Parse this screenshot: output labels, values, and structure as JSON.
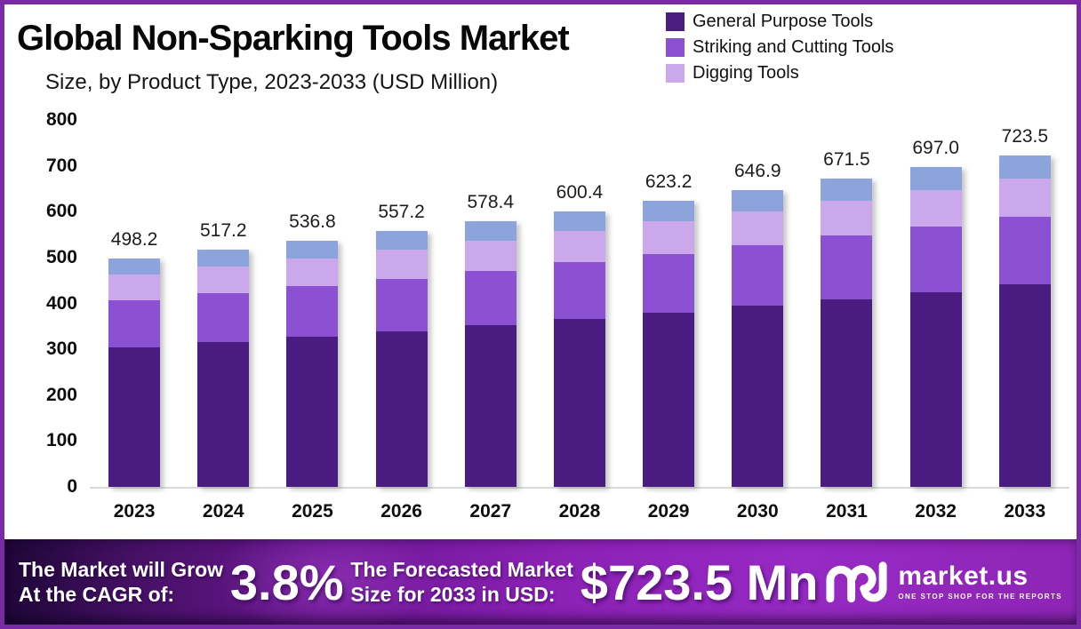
{
  "header": {
    "title": "Global Non-Sparking Tools Market",
    "subtitle": "Size, by Product Type, 2023-2033 (USD Million)"
  },
  "legend": [
    {
      "label": "General Purpose Tools",
      "color": "#4A1E80"
    },
    {
      "label": "Striking and Cutting Tools",
      "color": "#8B51D2"
    },
    {
      "label": "Digging Tools",
      "color": "#CBA8EB"
    }
  ],
  "chart_data": {
    "type": "bar",
    "stacked": true,
    "title": "Global Non-Sparking Tools Market Size, by Product Type, 2023-2033 (USD Million)",
    "categories": [
      "2023",
      "2024",
      "2025",
      "2026",
      "2027",
      "2028",
      "2029",
      "2030",
      "2031",
      "2032",
      "2033"
    ],
    "totals": [
      498.2,
      517.2,
      536.8,
      557.2,
      578.4,
      600.4,
      623.2,
      646.9,
      671.5,
      697.0,
      723.5
    ],
    "total_labels": [
      "498.2",
      "517.2",
      "536.8",
      "557.2",
      "578.4",
      "600.4",
      "623.2",
      "646.9",
      "671.5",
      "697.0",
      "723.5"
    ],
    "series": [
      {
        "name": "General Purpose Tools",
        "color": "#4A1B80",
        "values": [
          303.9,
          315.5,
          327.4,
          339.9,
          352.8,
          366.2,
          380.2,
          394.6,
          409.6,
          425.2,
          441.3
        ]
      },
      {
        "name": "Striking and Cutting Tools",
        "color": "#8B51D2",
        "values": [
          102.1,
          106.0,
          110.0,
          114.2,
          118.6,
          123.1,
          127.8,
          132.6,
          137.7,
          142.9,
          148.3
        ]
      },
      {
        "name": "Digging Tools",
        "color": "#CBA8EB",
        "values": [
          56.3,
          58.4,
          60.7,
          63.0,
          65.4,
          67.8,
          70.4,
          73.1,
          75.9,
          78.8,
          81.8
        ]
      },
      {
        "name": "",
        "color": "#8CA4DB",
        "values": [
          35.9,
          37.3,
          38.7,
          40.1,
          41.6,
          43.3,
          44.8,
          46.6,
          48.3,
          50.1,
          52.1
        ]
      }
    ],
    "xlabel": "",
    "ylabel": "",
    "ylim": [
      0,
      800
    ],
    "yticks": [
      800,
      700,
      600,
      500,
      400,
      300,
      200,
      100,
      0
    ],
    "grid": false,
    "legend_position": "top-right"
  },
  "banner": {
    "cagr_line1": "The Market will Grow",
    "cagr_line2": "At the CAGR of:",
    "cagr_value": "3.8%",
    "forecast_line1": "The Forecasted Market",
    "forecast_line2": "Size for 2033 in USD:",
    "forecast_value": "$723.5 Mn",
    "brand_name": "market.us",
    "brand_tagline": "ONE STOP SHOP FOR THE REPORTS"
  },
  "colors": {
    "border": "#7A2AA5",
    "axis_line": "#DADADA",
    "banner_left": "#1D0636",
    "banner_right": "#8E25B6"
  }
}
